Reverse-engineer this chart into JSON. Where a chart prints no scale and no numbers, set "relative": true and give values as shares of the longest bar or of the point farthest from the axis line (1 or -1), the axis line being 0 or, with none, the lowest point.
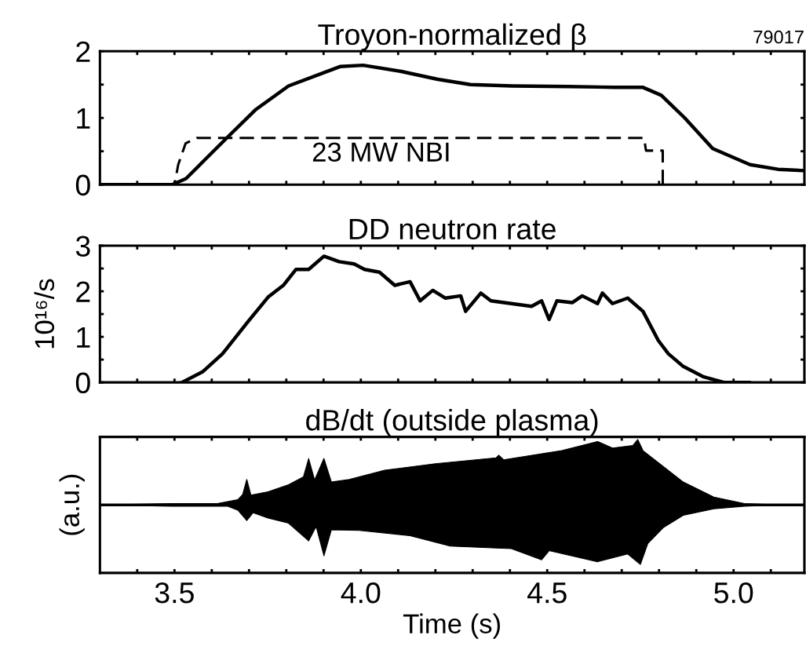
{
  "chart_data": [
    {
      "type": "line",
      "title": "Troyon-normalized β",
      "annotations": [
        "79017"
      ],
      "xlim": [
        3.3,
        5.19
      ],
      "xticks": [
        {
          "value": 3.4,
          "label": null
        },
        {
          "value": 3.5,
          "label": "3.5"
        },
        {
          "value": 3.6,
          "label": null
        },
        {
          "value": 3.7,
          "label": null
        },
        {
          "value": 3.8,
          "label": null
        },
        {
          "value": 3.9,
          "label": null
        },
        {
          "value": 4.0,
          "label": "4.0"
        },
        {
          "value": 4.1,
          "label": null
        },
        {
          "value": 4.2,
          "label": null
        },
        {
          "value": 4.3,
          "label": null
        },
        {
          "value": 4.4,
          "label": null
        },
        {
          "value": 4.5,
          "label": "4.5"
        },
        {
          "value": 4.6,
          "label": null
        },
        {
          "value": 4.7,
          "label": null
        },
        {
          "value": 4.8,
          "label": null
        },
        {
          "value": 4.9,
          "label": null
        },
        {
          "value": 5.0,
          "label": "5.0"
        },
        {
          "value": 5.1,
          "label": null
        }
      ],
      "ylim": [
        0,
        2
      ],
      "yticks": [
        0,
        {
          "value": 0.5,
          "label": null
        },
        1,
        {
          "value": 1.5,
          "label": null
        },
        2
      ],
      "tick_labels": "y",
      "series": [
        {
          "color": "#000000",
          "x": [
            3.3,
            3.494,
            3.531,
            3.581,
            3.644,
            3.719,
            3.806,
            3.906,
            3.944,
            4.006,
            4.106,
            4.206,
            4.294,
            4.406,
            4.556,
            4.681,
            4.756,
            4.806,
            4.869,
            4.944,
            5.044,
            5.119,
            5.19
          ],
          "values": [
            0,
            0,
            0.09,
            0.37,
            0.72,
            1.13,
            1.48,
            1.69,
            1.77,
            1.79,
            1.7,
            1.58,
            1.5,
            1.48,
            1.47,
            1.46,
            1.46,
            1.34,
            1.0,
            0.54,
            0.3,
            0.23,
            0.21
          ]
        },
        {
          "name": "23 MW NBI",
          "color": "#000000",
          "line_style": "dashed",
          "x": [
            3.3,
            3.5,
            3.51,
            3.53,
            3.56,
            4.76,
            4.765,
            4.81,
            4.81
          ],
          "values": [
            0,
            0,
            0.3,
            0.62,
            0.7,
            0.7,
            0.51,
            0.51,
            0
          ]
        }
      ]
    },
    {
      "type": "line",
      "title": "DD neutron rate",
      "ylabel": "10¹⁶/s",
      "xlim": [
        3.3,
        5.19
      ],
      "xticks": [
        {
          "value": 3.4,
          "label": null
        },
        {
          "value": 3.5,
          "label": "3.5"
        },
        {
          "value": 3.6,
          "label": null
        },
        {
          "value": 3.7,
          "label": null
        },
        {
          "value": 3.8,
          "label": null
        },
        {
          "value": 3.9,
          "label": null
        },
        {
          "value": 4.0,
          "label": "4.0"
        },
        {
          "value": 4.1,
          "label": null
        },
        {
          "value": 4.2,
          "label": null
        },
        {
          "value": 4.3,
          "label": null
        },
        {
          "value": 4.4,
          "label": null
        },
        {
          "value": 4.5,
          "label": "4.5"
        },
        {
          "value": 4.6,
          "label": null
        },
        {
          "value": 4.7,
          "label": null
        },
        {
          "value": 4.8,
          "label": null
        },
        {
          "value": 4.9,
          "label": null
        },
        {
          "value": 5.0,
          "label": "5.0"
        },
        {
          "value": 5.1,
          "label": null
        }
      ],
      "ylim": [
        0,
        3
      ],
      "yticks": [
        0,
        {
          "value": 0.5,
          "label": null
        },
        1,
        {
          "value": 1.5,
          "label": null
        },
        2,
        {
          "value": 2.5,
          "label": null
        },
        3
      ],
      "tick_labels": "y",
      "series": [
        {
          "color": "#000000",
          "x": [
            3.52,
            3.575,
            3.629,
            3.697,
            3.751,
            3.792,
            3.826,
            3.86,
            3.901,
            3.942,
            3.982,
            4.01,
            4.05,
            4.091,
            4.132,
            4.159,
            4.193,
            4.227,
            4.268,
            4.281,
            4.322,
            4.349,
            4.404,
            4.458,
            4.485,
            4.505,
            4.526,
            4.567,
            4.594,
            4.635,
            4.648,
            4.675,
            4.716,
            4.757,
            4.798,
            4.825,
            4.865,
            4.92,
            4.974,
            5.042
          ],
          "values": [
            0,
            0.23,
            0.63,
            1.33,
            1.87,
            2.13,
            2.48,
            2.48,
            2.77,
            2.65,
            2.6,
            2.48,
            2.42,
            2.13,
            2.21,
            1.79,
            2.02,
            1.85,
            1.9,
            1.56,
            1.96,
            1.79,
            1.73,
            1.67,
            1.79,
            1.38,
            1.79,
            1.75,
            1.9,
            1.73,
            1.96,
            1.73,
            1.85,
            1.56,
            0.92,
            0.63,
            0.35,
            0.12,
            0,
            0
          ]
        }
      ]
    },
    {
      "type": "area",
      "title": "dB/dt (outside plasma)",
      "ylabel": "(a.u.)",
      "xlabel": "Time (s)",
      "relative": true,
      "xlim": [
        3.3,
        5.19
      ],
      "xticks": [
        {
          "value": 3.4,
          "label": null
        },
        {
          "value": 3.5,
          "label": "3.5"
        },
        {
          "value": 3.6,
          "label": null
        },
        {
          "value": 3.7,
          "label": null
        },
        {
          "value": 3.8,
          "label": null
        },
        {
          "value": 3.9,
          "label": null
        },
        {
          "value": 4.0,
          "label": "4.0"
        },
        {
          "value": 4.1,
          "label": null
        },
        {
          "value": 4.2,
          "label": null
        },
        {
          "value": 4.3,
          "label": null
        },
        {
          "value": 4.4,
          "label": null
        },
        {
          "value": 4.5,
          "label": "4.5"
        },
        {
          "value": 4.6,
          "label": null
        },
        {
          "value": 4.7,
          "label": null
        },
        {
          "value": 4.8,
          "label": null
        },
        {
          "value": 4.9,
          "label": null
        },
        {
          "value": 5.0,
          "label": "5.0"
        },
        {
          "value": 5.1,
          "label": null
        }
      ],
      "tick_labels": "x",
      "ref_lines": [
        {
          "axis": "y",
          "value": 0,
          "color": "#000000"
        }
      ],
      "series": [
        {
          "color": "#000000",
          "x": [
            3.303,
            3.493,
            3.615,
            3.67,
            3.683,
            3.694,
            3.705,
            3.751,
            3.806,
            3.846,
            3.86,
            3.876,
            3.901,
            3.921,
            3.969,
            4.064,
            4.2,
            4.363,
            4.37,
            4.383,
            4.539,
            4.635,
            4.675,
            4.73,
            4.743,
            4.757,
            4.811,
            4.865,
            4.947,
            5.029,
            5.124
          ],
          "values": [
            0,
            0.02,
            0.02,
            0.08,
            0.16,
            0.39,
            0.15,
            0.2,
            0.31,
            0.43,
            0.71,
            0.38,
            0.71,
            0.35,
            0.39,
            0.53,
            0.63,
            0.72,
            0.76,
            0.69,
            0.83,
            0.97,
            0.87,
            0.91,
            1.0,
            0.83,
            0.59,
            0.35,
            0.12,
            0.02,
            0
          ]
        },
        {
          "color": "#000000",
          "x": [
            3.303,
            3.493,
            3.643,
            3.67,
            3.694,
            3.711,
            3.751,
            3.806,
            3.86,
            3.88,
            3.901,
            3.921,
            3.996,
            4.132,
            4.24,
            4.404,
            4.485,
            4.505,
            4.635,
            4.716,
            4.75,
            4.77,
            4.811,
            4.865,
            4.947,
            5.029,
            5.124
          ],
          "values": [
            0,
            -0.02,
            -0.02,
            -0.08,
            -0.24,
            -0.12,
            -0.2,
            -0.28,
            -0.55,
            -0.33,
            -0.78,
            -0.38,
            -0.39,
            -0.47,
            -0.63,
            -0.67,
            -0.84,
            -0.7,
            -0.87,
            -0.75,
            -0.91,
            -0.59,
            -0.35,
            -0.16,
            -0.06,
            -0.02,
            0
          ]
        }
      ]
    }
  ]
}
